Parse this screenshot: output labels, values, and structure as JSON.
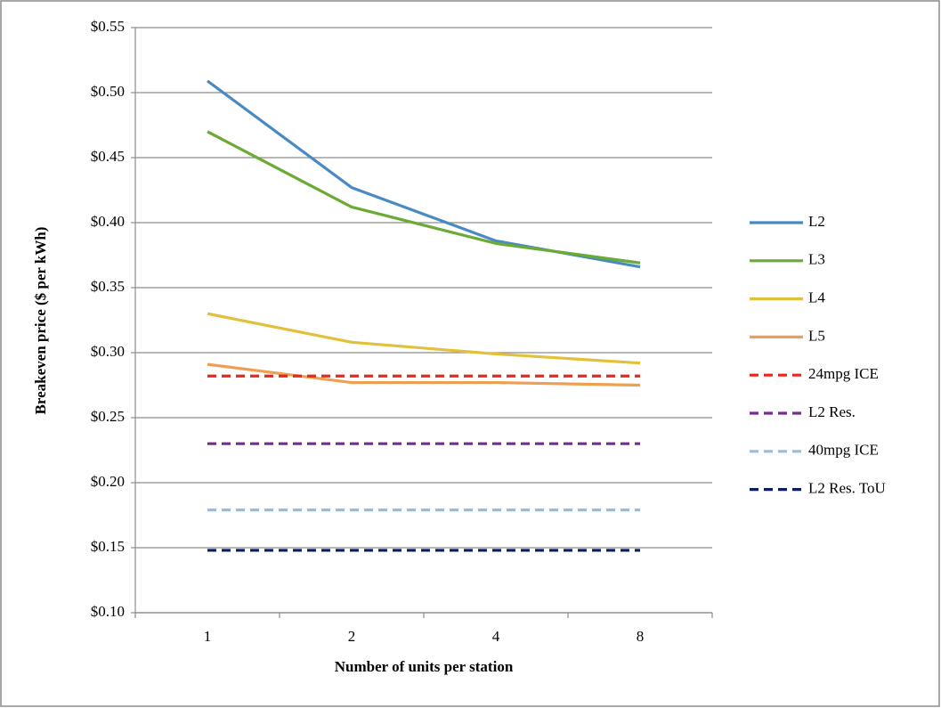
{
  "chart_data": {
    "type": "line",
    "x_label": "Number of units per station",
    "y_label": "Breakeven price ($ per kWh)",
    "categories": [
      "1",
      "2",
      "4",
      "8"
    ],
    "ylim": [
      0.1,
      0.55
    ],
    "yticks": [
      {
        "value": 0.1,
        "label": "$0.10"
      },
      {
        "value": 0.15,
        "label": "$0.15"
      },
      {
        "value": 0.2,
        "label": "$0.20"
      },
      {
        "value": 0.25,
        "label": "$0.25"
      },
      {
        "value": 0.3,
        "label": "$0.30"
      },
      {
        "value": 0.35,
        "label": "$0.35"
      },
      {
        "value": 0.4,
        "label": "$0.40"
      },
      {
        "value": 0.45,
        "label": "$0.45"
      },
      {
        "value": 0.5,
        "label": "$0.50"
      },
      {
        "value": 0.55,
        "label": "$0.55"
      }
    ],
    "grid": true,
    "legend": "right",
    "series": [
      {
        "name": "L2",
        "color": "#4a8ac4",
        "dashed": false,
        "values": [
          0.509,
          0.427,
          0.386,
          0.366
        ]
      },
      {
        "name": "L3",
        "color": "#6aaa35",
        "dashed": false,
        "values": [
          0.47,
          0.412,
          0.384,
          0.369
        ]
      },
      {
        "name": "L4",
        "color": "#e3c03a",
        "dashed": false,
        "values": [
          0.33,
          0.308,
          0.299,
          0.292
        ]
      },
      {
        "name": "L5",
        "color": "#ef9f52",
        "dashed": false,
        "values": [
          0.291,
          0.277,
          0.277,
          0.275
        ]
      },
      {
        "name": "24mpg ICE",
        "color": "#e8281e",
        "dashed": true,
        "values": [
          0.282,
          0.282,
          0.282,
          0.282
        ]
      },
      {
        "name": "L2 Res.",
        "color": "#7a2a90",
        "dashed": true,
        "values": [
          0.23,
          0.23,
          0.23,
          0.23
        ]
      },
      {
        "name": "40mpg ICE",
        "color": "#93bde2",
        "dashed": true,
        "values": [
          0.179,
          0.179,
          0.179,
          0.179
        ]
      },
      {
        "name": "L2 Res. ToU",
        "color": "#0b1f5c",
        "dashed": true,
        "values": [
          0.148,
          0.148,
          0.148,
          0.148
        ]
      }
    ]
  }
}
